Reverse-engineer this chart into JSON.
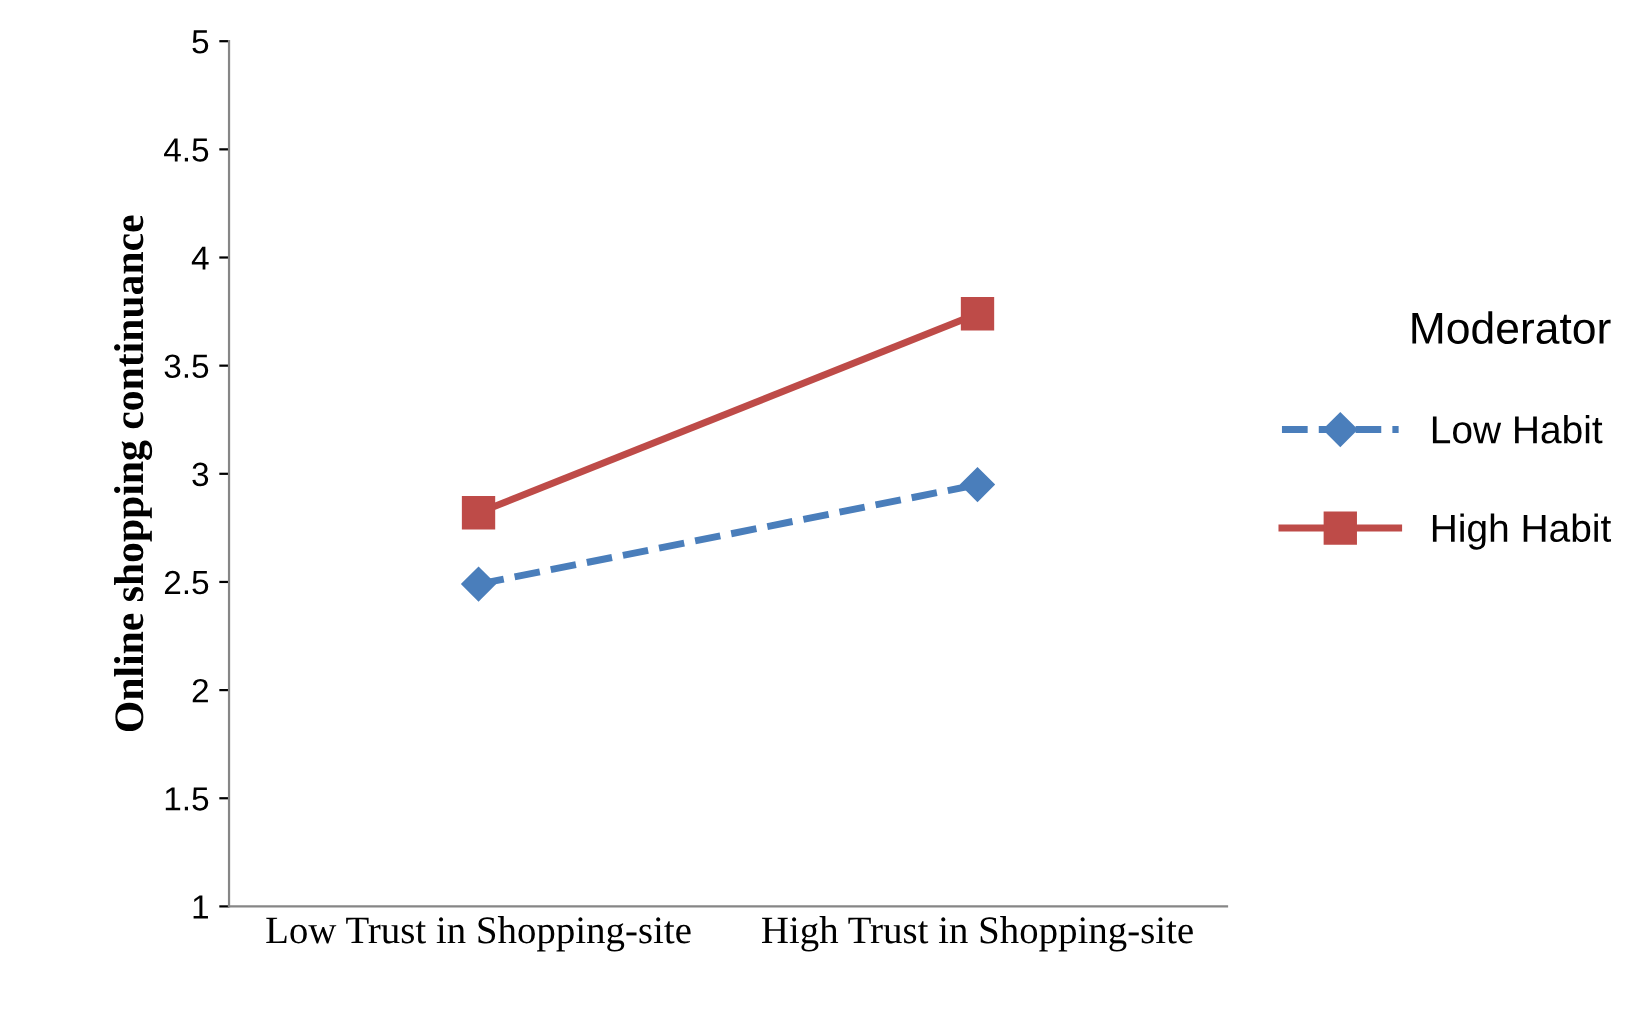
{
  "chart_data": {
    "type": "line",
    "ylabel": "Online shopping continuance",
    "legend_title": "Moderator",
    "legend": "right",
    "grid": false,
    "categories": [
      "Low Trust in Shopping-site",
      "High Trust in Shopping-site"
    ],
    "ylim": [
      1,
      5
    ],
    "yticks": [
      1,
      1.5,
      2,
      2.5,
      3,
      3.5,
      4,
      4.5,
      5
    ],
    "series": [
      {
        "name": "Low Habit",
        "color": "#4a7ebb",
        "values": [
          2.49,
          2.95
        ],
        "marker": "diamond",
        "line_style": "dashed"
      },
      {
        "name": "High Habit",
        "color": "#be4b48",
        "values": [
          2.82,
          3.74
        ],
        "marker": "square",
        "line_style": "solid"
      }
    ]
  }
}
